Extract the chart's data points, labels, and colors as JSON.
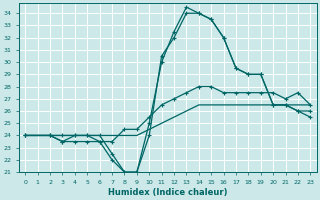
{
  "xlabel": "Humidex (Indice chaleur)",
  "bg_color": "#cce8e8",
  "grid_color": "#aacccc",
  "line_color": "#006666",
  "xlim": [
    -0.5,
    23.5
  ],
  "ylim": [
    21,
    34.8
  ],
  "xticks": [
    0,
    1,
    2,
    3,
    4,
    5,
    6,
    7,
    8,
    9,
    10,
    11,
    12,
    13,
    14,
    15,
    16,
    17,
    18,
    19,
    20,
    21,
    22,
    23
  ],
  "yticks": [
    21,
    22,
    23,
    24,
    25,
    26,
    27,
    28,
    29,
    30,
    31,
    32,
    33,
    34
  ],
  "line1_x": [
    0,
    2,
    3,
    4,
    5,
    6,
    7,
    8,
    9,
    10,
    11,
    12,
    13,
    14,
    15,
    16,
    17,
    18,
    19,
    20,
    21,
    22,
    23
  ],
  "line1_y": [
    24.0,
    24.0,
    23.5,
    23.5,
    23.5,
    23.5,
    23.5,
    24.5,
    24.5,
    25.5,
    26.5,
    27.0,
    27.5,
    28.0,
    28.0,
    27.5,
    27.5,
    27.5,
    27.5,
    27.5,
    27.0,
    27.5,
    26.5
  ],
  "line2_x": [
    0,
    2,
    3,
    4,
    5,
    6,
    7,
    8,
    9,
    10,
    11,
    12,
    13,
    14,
    15,
    16,
    17,
    18,
    19,
    20,
    21,
    22,
    23
  ],
  "line2_y": [
    24.0,
    24.0,
    24.0,
    24.0,
    24.0,
    24.0,
    24.0,
    24.0,
    24.0,
    24.5,
    25.0,
    25.5,
    26.0,
    26.5,
    26.5,
    26.5,
    26.5,
    26.5,
    26.5,
    26.5,
    26.5,
    26.5,
    26.5
  ],
  "line3_x": [
    0,
    2,
    3,
    4,
    5,
    6,
    7,
    8,
    9,
    10,
    11,
    12,
    13,
    14,
    15,
    16,
    17,
    18,
    19,
    20,
    21,
    22,
    23
  ],
  "line3_y": [
    24.0,
    24.0,
    24.0,
    24.0,
    24.0,
    24.0,
    22.5,
    21.0,
    21.0,
    25.0,
    30.0,
    32.5,
    34.5,
    34.0,
    33.5,
    32.0,
    29.5,
    29.0,
    29.0,
    26.5,
    26.5,
    26.0,
    25.5
  ],
  "line4_x": [
    0,
    2,
    3,
    4,
    5,
    6,
    7,
    8,
    9,
    10,
    11,
    12,
    13,
    14,
    15,
    16,
    17,
    18,
    19,
    20,
    21,
    22,
    23
  ],
  "line4_y": [
    24.0,
    24.0,
    23.5,
    24.0,
    24.0,
    23.5,
    22.0,
    21.0,
    21.0,
    24.0,
    30.5,
    32.0,
    34.0,
    34.0,
    33.5,
    32.0,
    29.5,
    29.0,
    29.0,
    26.5,
    26.5,
    26.0,
    26.0
  ]
}
